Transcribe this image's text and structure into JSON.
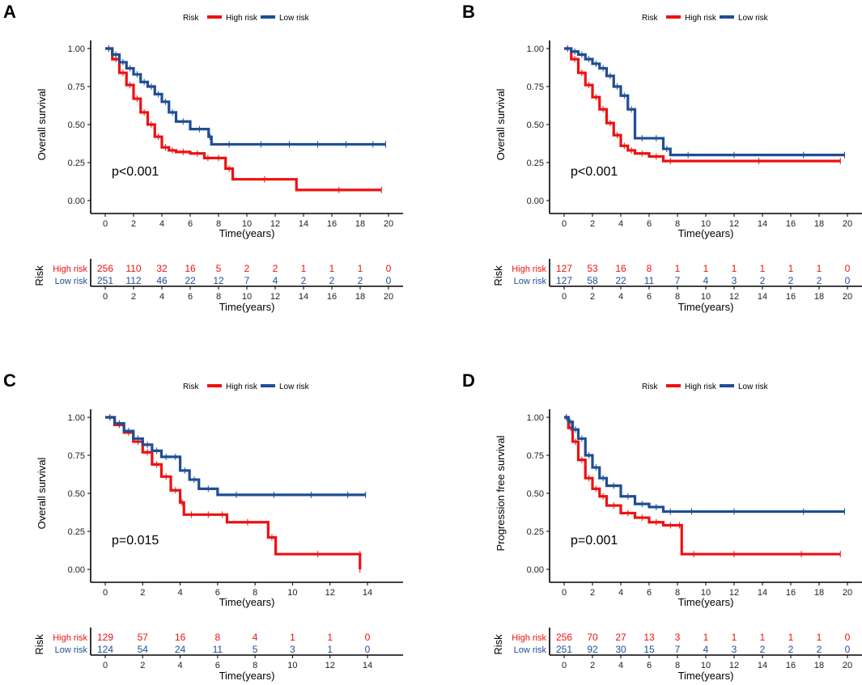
{
  "legend": {
    "title": "Risk",
    "high_label": "High risk",
    "low_label": "Low risk"
  },
  "colors": {
    "high": "#ee1111",
    "low": "#1f4e94",
    "axis": "#000000"
  },
  "chart_data": [
    {
      "panel": "A",
      "type": "line",
      "ylabel": "Overall survival",
      "xlabel": "Time(years)",
      "xlim": [
        0,
        20
      ],
      "ylim": [
        0,
        1
      ],
      "xticks": [
        "0",
        "2",
        "4",
        "6",
        "8",
        "10",
        "12",
        "14",
        "16",
        "18",
        "20"
      ],
      "yticks": [
        "0.00",
        "0.25",
        "0.50",
        "0.75",
        "1.00"
      ],
      "pvalue": "p<0.001",
      "series": [
        {
          "name": "High risk",
          "x": [
            0,
            0.5,
            1,
            1.5,
            2,
            2.5,
            3,
            3.5,
            4,
            4.5,
            5,
            6,
            7,
            7.5,
            8.5,
            9,
            13.5,
            19.5
          ],
          "y": [
            1.0,
            0.93,
            0.84,
            0.76,
            0.67,
            0.58,
            0.5,
            0.42,
            0.35,
            0.33,
            0.32,
            0.31,
            0.28,
            0.28,
            0.21,
            0.14,
            0.07,
            0.07
          ]
        },
        {
          "name": "Low risk",
          "x": [
            0,
            0.5,
            1,
            1.5,
            2,
            2.5,
            3,
            3.5,
            4,
            4.5,
            5,
            6,
            7.3,
            7.5,
            10,
            12,
            14,
            16,
            18,
            19.8
          ],
          "y": [
            1.0,
            0.96,
            0.91,
            0.87,
            0.83,
            0.78,
            0.75,
            0.7,
            0.65,
            0.58,
            0.52,
            0.47,
            0.42,
            0.37,
            0.37,
            0.37,
            0.37,
            0.37,
            0.37,
            0.37
          ]
        }
      ],
      "risk_table": {
        "title": "Risk",
        "xlabel": "Time(years)",
        "high": [
          "256",
          "110",
          "32",
          "16",
          "5",
          "2",
          "2",
          "1",
          "1",
          "1",
          "0"
        ],
        "low": [
          "251",
          "112",
          "46",
          "22",
          "12",
          "7",
          "4",
          "2",
          "2",
          "2",
          "0"
        ]
      }
    },
    {
      "panel": "B",
      "type": "line",
      "ylabel": "Overall survival",
      "xlabel": "Time(years)",
      "xlim": [
        0,
        20
      ],
      "ylim": [
        0,
        1
      ],
      "xticks": [
        "0",
        "2",
        "4",
        "6",
        "8",
        "10",
        "12",
        "14",
        "16",
        "18",
        "20"
      ],
      "yticks": [
        "0.00",
        "0.25",
        "0.50",
        "0.75",
        "1.00"
      ],
      "pvalue": "p<0.001",
      "series": [
        {
          "name": "High risk",
          "x": [
            0,
            0.5,
            1,
            1.5,
            2,
            2.5,
            3,
            3.5,
            4,
            4.5,
            5,
            6,
            7,
            8,
            19.5
          ],
          "y": [
            1.0,
            0.93,
            0.84,
            0.76,
            0.68,
            0.6,
            0.51,
            0.43,
            0.36,
            0.33,
            0.31,
            0.29,
            0.26,
            0.26,
            0.26
          ]
        },
        {
          "name": "Low risk",
          "x": [
            0,
            0.5,
            1,
            1.5,
            2,
            2.5,
            3,
            3.5,
            4,
            4.5,
            5,
            6,
            7,
            7.5,
            10,
            14,
            19.8
          ],
          "y": [
            1.0,
            0.98,
            0.96,
            0.93,
            0.9,
            0.87,
            0.82,
            0.75,
            0.69,
            0.6,
            0.41,
            0.41,
            0.34,
            0.3,
            0.3,
            0.3,
            0.3
          ]
        }
      ],
      "risk_table": {
        "title": "Risk",
        "xlabel": "Time(years)",
        "high": [
          "127",
          "53",
          "16",
          "8",
          "1",
          "1",
          "1",
          "1",
          "1",
          "1",
          "0"
        ],
        "low": [
          "127",
          "58",
          "22",
          "11",
          "7",
          "4",
          "3",
          "2",
          "2",
          "2",
          "0"
        ]
      }
    },
    {
      "panel": "C",
      "type": "line",
      "ylabel": "Overall survival",
      "xlabel": "Time(years)",
      "xlim": [
        0,
        14
      ],
      "ylim": [
        0,
        1
      ],
      "xticks": [
        "0",
        "2",
        "4",
        "6",
        "8",
        "10",
        "12",
        "14"
      ],
      "yticks": [
        "0.00",
        "0.25",
        "0.50",
        "0.75",
        "1.00"
      ],
      "pvalue": "p=0.015",
      "series": [
        {
          "name": "High risk",
          "x": [
            0,
            0.5,
            1,
            1.5,
            2,
            2.5,
            3,
            3.5,
            4,
            4.2,
            5,
            6,
            6.5,
            8.7,
            9.1,
            13.6,
            13.6
          ],
          "y": [
            1.0,
            0.95,
            0.9,
            0.84,
            0.77,
            0.69,
            0.61,
            0.52,
            0.44,
            0.36,
            0.36,
            0.36,
            0.31,
            0.21,
            0.1,
            0.1,
            0.0
          ]
        },
        {
          "name": "Low risk",
          "x": [
            0,
            0.5,
            1,
            1.5,
            2,
            2.5,
            3,
            3.5,
            4,
            4.5,
            5,
            6,
            8,
            10,
            12,
            13.9
          ],
          "y": [
            1.0,
            0.96,
            0.91,
            0.86,
            0.82,
            0.78,
            0.74,
            0.74,
            0.65,
            0.59,
            0.53,
            0.49,
            0.49,
            0.49,
            0.49,
            0.49
          ]
        }
      ],
      "risk_table": {
        "title": "Risk",
        "xlabel": "Time(years)",
        "high": [
          "129",
          "57",
          "16",
          "8",
          "4",
          "1",
          "1",
          "0"
        ],
        "low": [
          "124",
          "54",
          "24",
          "11",
          "5",
          "3",
          "1",
          "0"
        ]
      }
    },
    {
      "panel": "D",
      "type": "line",
      "ylabel": "Progression free survival",
      "xlabel": "Time(years)",
      "xlim": [
        0,
        20
      ],
      "ylim": [
        0,
        1
      ],
      "xticks": [
        "0",
        "2",
        "4",
        "6",
        "8",
        "10",
        "12",
        "14",
        "16",
        "18",
        "20"
      ],
      "yticks": [
        "0.00",
        "0.25",
        "0.50",
        "0.75",
        "1.00"
      ],
      "pvalue": "p=0.001",
      "series": [
        {
          "name": "High risk",
          "x": [
            0,
            0.3,
            0.6,
            1,
            1.5,
            2,
            2.5,
            3,
            4,
            5,
            6,
            7,
            8,
            8.3,
            10,
            14,
            19.5
          ],
          "y": [
            1.0,
            0.93,
            0.84,
            0.72,
            0.6,
            0.53,
            0.48,
            0.42,
            0.37,
            0.34,
            0.31,
            0.29,
            0.29,
            0.1,
            0.1,
            0.1,
            0.1
          ]
        },
        {
          "name": "Low risk",
          "x": [
            0,
            0.3,
            0.6,
            1,
            1.5,
            2,
            2.5,
            3,
            4,
            5,
            6,
            7,
            8,
            10,
            14,
            19.8
          ],
          "y": [
            1.0,
            0.97,
            0.92,
            0.86,
            0.75,
            0.67,
            0.6,
            0.55,
            0.48,
            0.43,
            0.41,
            0.38,
            0.38,
            0.38,
            0.38,
            0.38
          ]
        }
      ],
      "risk_table": {
        "title": "Risk",
        "xlabel": "Time(years)",
        "high": [
          "256",
          "70",
          "27",
          "13",
          "3",
          "1",
          "1",
          "1",
          "1",
          "1",
          "0"
        ],
        "low": [
          "251",
          "92",
          "30",
          "15",
          "7",
          "4",
          "3",
          "2",
          "2",
          "2",
          "0"
        ]
      }
    }
  ]
}
